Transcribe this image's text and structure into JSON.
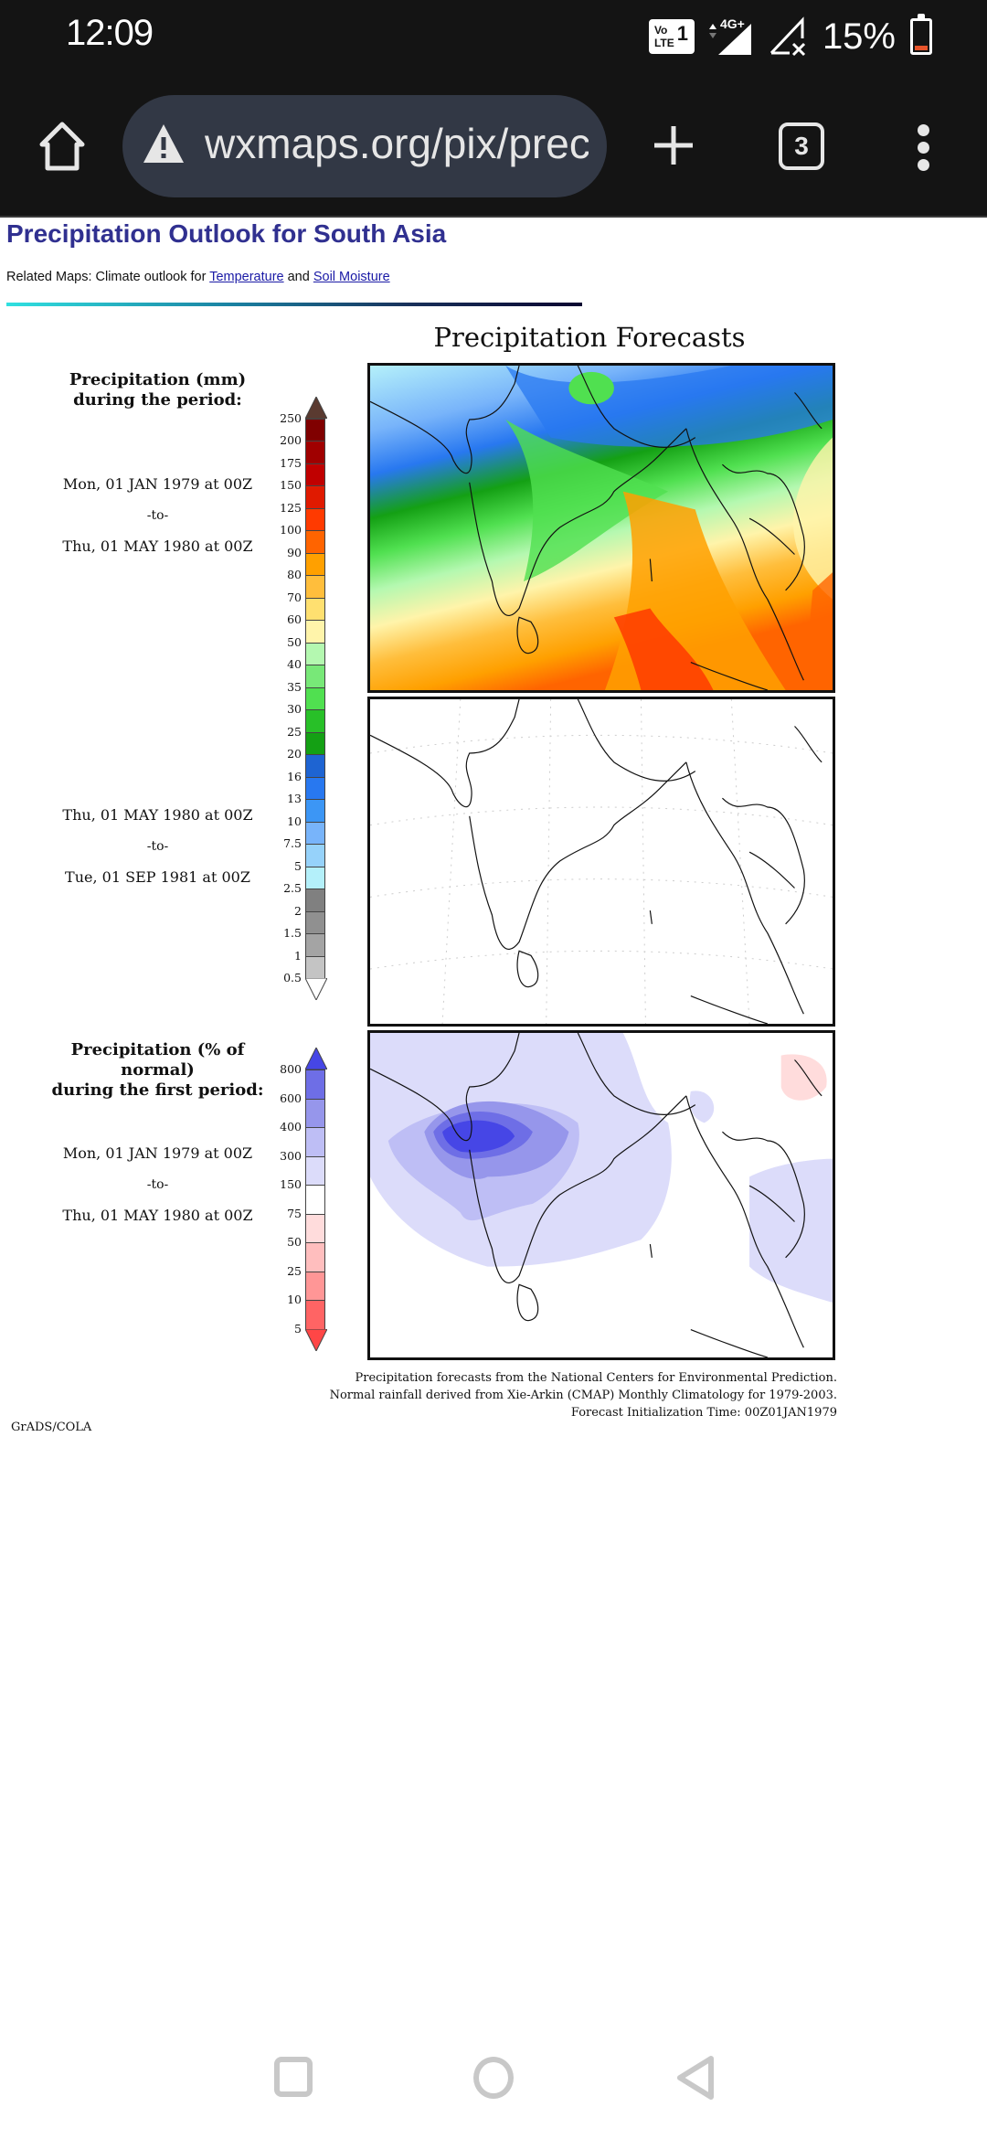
{
  "status_bar": {
    "time": "12:09",
    "volte_label": "Vo LTE",
    "sim_number": "1",
    "network_type": "4G+",
    "battery_percent": "15%",
    "battery_level": 0.15,
    "icons": [
      "volte-icon",
      "signal-4g-icon",
      "no-signal-icon",
      "battery-icon"
    ]
  },
  "browser": {
    "url": "wxmaps.org/pix/prec",
    "tab_count": "3",
    "icons": [
      "home-icon",
      "not-secure-warning-icon",
      "new-tab-icon",
      "tab-switcher-icon",
      "more-menu-icon"
    ]
  },
  "page": {
    "title": "Precipitation Outlook for South Asia",
    "related_prefix": "Related Maps: Climate outlook for ",
    "related_link_1": "Temperature",
    "related_joiner": " and ",
    "related_link_2": "Soil Moisture"
  },
  "figure": {
    "title": "Precipitation Forecasts",
    "legend1": {
      "title_line1": "Precipitation (mm)",
      "title_line2": "during the period:",
      "period1_start": "Mon, 01 JAN 1979 at 00Z",
      "period1_to": "-to-",
      "period1_end": "Thu, 01 MAY 1980 at 00Z",
      "period2_start": "Thu, 01 MAY 1980 at 00Z",
      "period2_to": "-to-",
      "period2_end": "Tue, 01 SEP 1981 at 00Z",
      "ticks": [
        "250",
        "200",
        "175",
        "150",
        "125",
        "100",
        "90",
        "80",
        "70",
        "60",
        "50",
        "40",
        "35",
        "30",
        "25",
        "20",
        "16",
        "13",
        "10",
        "7.5",
        "5",
        "2.5",
        "2",
        "1.5",
        "1",
        "0.5"
      ],
      "colors": [
        "#5a3a30",
        "#800000",
        "#a00000",
        "#c00000",
        "#e01a00",
        "#ff3a00",
        "#ff6400",
        "#ffa000",
        "#ffbe3c",
        "#ffe070",
        "#fff4aa",
        "#b4f8b0",
        "#78e878",
        "#50e050",
        "#28c028",
        "#14a014",
        "#1e64d2",
        "#2878f0",
        "#3c96f5",
        "#78b4fa",
        "#96d2fa",
        "#b4f0fa",
        "#808080",
        "#909090",
        "#a4a4a4",
        "#c4c4c4",
        "#ffffff"
      ]
    },
    "legend2": {
      "title_line1": "Precipitation (% of normal)",
      "title_line2": "during the first period:",
      "period_start": "Mon, 01 JAN 1979 at 00Z",
      "period_to": "-to-",
      "period_end": "Thu, 01 MAY 1980 at 00Z",
      "ticks": [
        "800",
        "600",
        "400",
        "300",
        "150",
        "75",
        "50",
        "25",
        "10",
        "5"
      ],
      "colors": [
        "#4646e6",
        "#6e6ee6",
        "#9696eb",
        "#bebef5",
        "#dcdcfa",
        "#ffffff",
        "#ffdcdc",
        "#ffbebe",
        "#ff9696",
        "#ff6464",
        "#ff4646"
      ]
    },
    "maps": [
      {
        "name": "precipitation-period-1-map",
        "description": "Precipitation (mm) Jan 1979 - May 1980"
      },
      {
        "name": "precipitation-period-2-map",
        "description": "Precipitation (mm) May 1980 - Sep 1981 (blank)"
      },
      {
        "name": "percent-of-normal-map",
        "description": "Precipitation % of normal, first period"
      }
    ],
    "footnote_1": "Precipitation forecasts from the National Centers for Environmental Prediction.",
    "footnote_2": "Normal rainfall derived from Xie-Arkin (CMAP) Monthly Climatology for 1979-2003.",
    "footnote_3": "Forecast Initialization Time: 00Z01JAN1979",
    "credit": "GrADS/COLA"
  },
  "nav_bar": {
    "icons": [
      "recents-icon",
      "home-icon",
      "back-icon"
    ]
  }
}
